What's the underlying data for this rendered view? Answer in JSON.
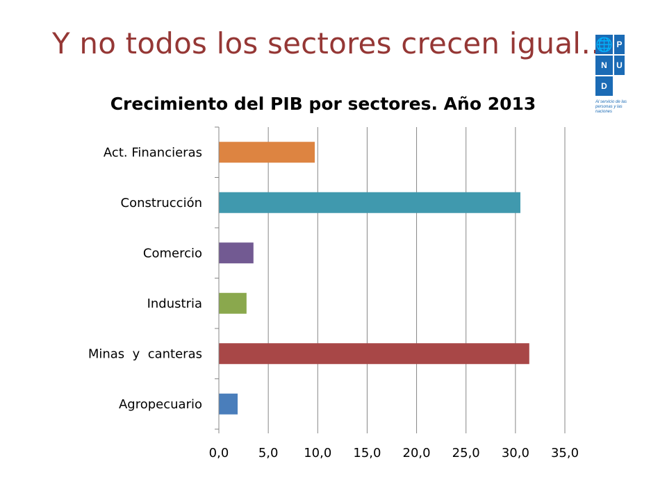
{
  "slide": {
    "title": "Y no todos los sectores crecen igual…"
  },
  "logo": {
    "letters": [
      "P",
      "N",
      "U",
      "D"
    ],
    "tagline": "Al servicio de las personas y las naciones",
    "icon": "un-emblem-icon"
  },
  "colors": {
    "title": "#953735",
    "gridline": "#868686",
    "logo_blue": "#1b6bb5"
  },
  "chart_data": {
    "type": "bar",
    "orientation": "horizontal",
    "title": "Crecimiento del PIB por sectores. Año 2013",
    "xlabel": "",
    "ylabel": "",
    "categories": [
      "Agropecuario",
      "Minas  y  canteras",
      "Industria",
      "Comercio",
      "Construcción",
      "Act. Financieras"
    ],
    "values": [
      1.9,
      31.4,
      2.8,
      3.5,
      30.5,
      9.7
    ],
    "colors": [
      "#4a7ebb",
      "#a84747",
      "#8aa84d",
      "#725a92",
      "#4099ae",
      "#dd8441"
    ],
    "xlim": [
      0,
      35
    ],
    "xticks": [
      0,
      5,
      10,
      15,
      20,
      25,
      30,
      35
    ],
    "xtick_labels": [
      "0,0",
      "5,0",
      "10,0",
      "15,0",
      "20,0",
      "25,0",
      "30,0",
      "35,0"
    ],
    "grid": true,
    "legend": "none"
  }
}
